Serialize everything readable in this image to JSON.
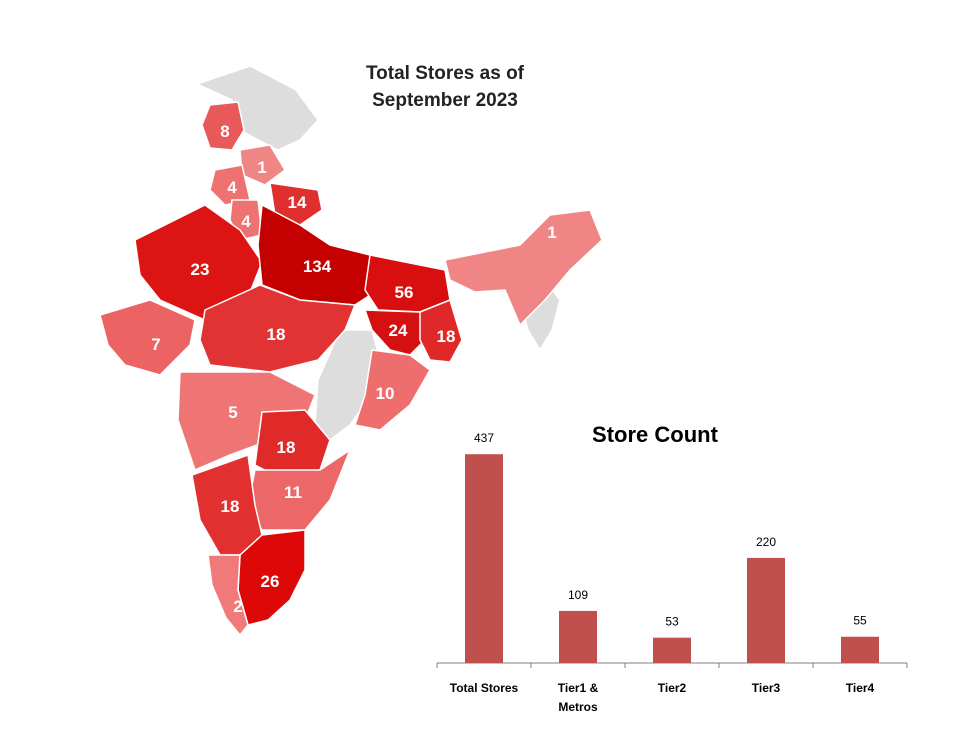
{
  "map": {
    "title_line1": "Total Stores as of",
    "title_line2": "September 2023",
    "regions": [
      {
        "label": "8",
        "color": "#e85a5a"
      },
      {
        "label": "1",
        "color": "#f08585"
      },
      {
        "label": "4",
        "color": "#ee7272"
      },
      {
        "label": "4",
        "color": "#ee7272"
      },
      {
        "label": "14",
        "color": "#e02f2f"
      },
      {
        "label": "23",
        "color": "#dc1414"
      },
      {
        "label": "134",
        "color": "#c40000"
      },
      {
        "label": "56",
        "color": "#d90e0e"
      },
      {
        "label": "7",
        "color": "#ec6363"
      },
      {
        "label": "18",
        "color": "#e13333"
      },
      {
        "label": "24",
        "color": "#d41010"
      },
      {
        "label": "18",
        "color": "#e02828"
      },
      {
        "label": "10",
        "color": "#ee6e6e"
      },
      {
        "label": "5",
        "color": "#ef7575"
      },
      {
        "label": "18",
        "color": "#e02a2a"
      },
      {
        "label": "11",
        "color": "#ec6767"
      },
      {
        "label": "18",
        "color": "#e23030"
      },
      {
        "label": "26",
        "color": "#dd0808"
      },
      {
        "label": "2",
        "color": "#f07a7a"
      },
      {
        "label": "1",
        "color": "#f08585"
      }
    ],
    "no_data_color": "#dddddd"
  },
  "chart_data": {
    "type": "bar",
    "title": "Store Count",
    "categories": [
      "Total Stores",
      "Tier1 & Metros",
      "Tier2",
      "Tier3",
      "Tier4"
    ],
    "category_lines": [
      [
        "Total Stores"
      ],
      [
        "Tier1 &",
        "Metros"
      ],
      [
        "Tier2"
      ],
      [
        "Tier3"
      ],
      [
        "Tier4"
      ]
    ],
    "values": [
      437,
      109,
      53,
      220,
      55
    ],
    "bar_color": "#c0504d",
    "ylim": [
      0,
      450
    ],
    "grid": false,
    "data_labels": true
  }
}
